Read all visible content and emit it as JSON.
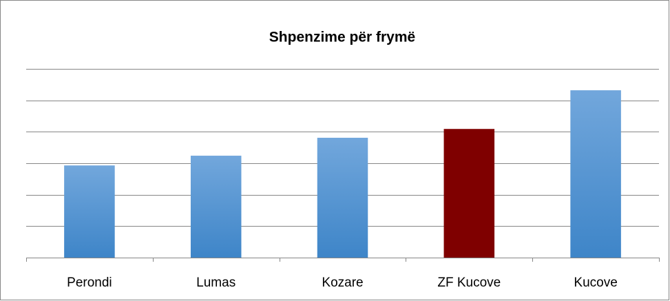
{
  "chart_data": {
    "type": "bar",
    "title": "Shpenzime për frymë",
    "categories": [
      "Perondi",
      "Lumas",
      "Kozare",
      "ZF Kucove",
      "Kucove"
    ],
    "values": [
      2.93,
      3.24,
      3.81,
      4.09,
      5.32
    ],
    "colors": [
      "#5b9bd5",
      "#5b9bd5",
      "#5b9bd5",
      "#7f0000",
      "#5b9bd5"
    ],
    "ylim": [
      0,
      6
    ],
    "yticks": [
      0,
      1,
      2,
      3,
      4,
      5,
      6
    ],
    "grid": true
  }
}
